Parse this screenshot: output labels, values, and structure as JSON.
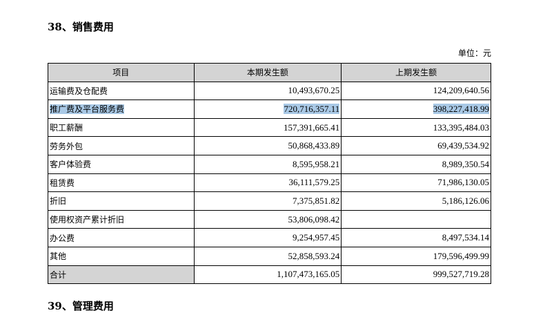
{
  "section_title": "38、销售费用",
  "unit": "单位：元",
  "columns": [
    "项目",
    "本期发生额",
    "上期发生额"
  ],
  "rows": [
    {
      "item": "运输费及仓配费",
      "current": "10,493,670.25",
      "previous": "124,209,640.56"
    },
    {
      "item": "推广费及平台服务费",
      "current": "720,716,357.11",
      "previous": "398,227,418.99",
      "highlighted": true
    },
    {
      "item": "职工薪酬",
      "current": "157,391,665.41",
      "previous": "133,395,484.03"
    },
    {
      "item": "劳务外包",
      "current": "50,868,433.89",
      "previous": "69,439,534.92"
    },
    {
      "item": "客户体验费",
      "current": "8,595,958.21",
      "previous": "8,989,350.54"
    },
    {
      "item": "租赁费",
      "current": "36,111,579.25",
      "previous": "71,986,130.05"
    },
    {
      "item": "折旧",
      "current": "7,375,851.82",
      "previous": "5,186,126.06"
    },
    {
      "item": "使用权资产累计折旧",
      "current": "53,806,098.42",
      "previous": ""
    },
    {
      "item": "办公费",
      "current": "9,254,957.45",
      "previous": "8,497,534.14"
    },
    {
      "item": "其他",
      "current": "52,858,593.24",
      "previous": "179,596,499.99"
    }
  ],
  "total": {
    "item": "合计",
    "current": "1,107,473,165.05",
    "previous": "999,527,719.28"
  },
  "next_section_title": "39、管理费用",
  "colors": {
    "highlight": "#a9c9e6",
    "header_bg": "#d4d4d4"
  }
}
